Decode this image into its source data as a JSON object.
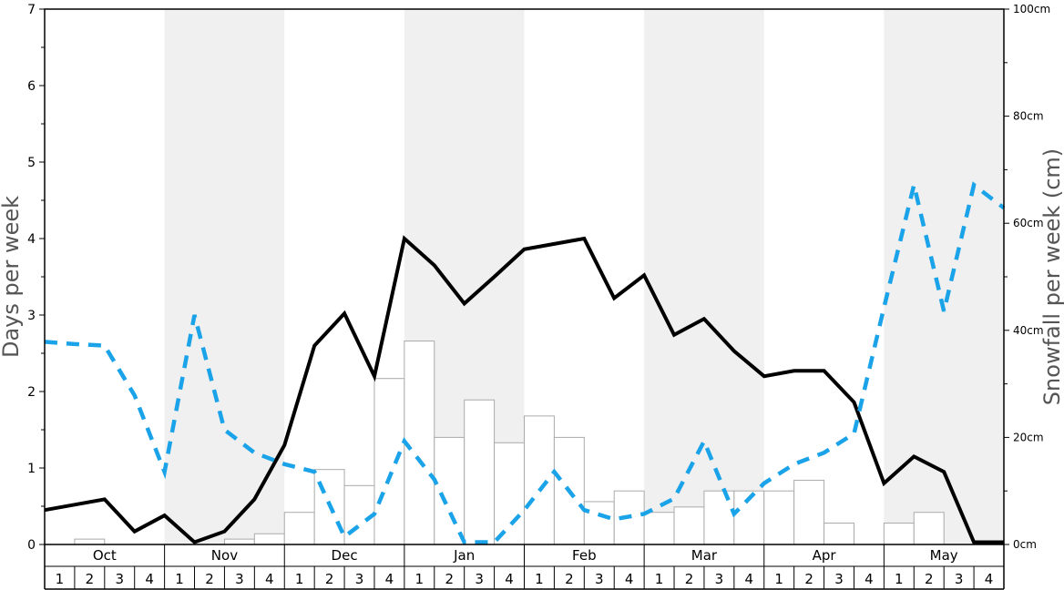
{
  "chart_data": {
    "type": "bar+line",
    "title": "",
    "left_axis": {
      "label": "Days per week",
      "ylim": [
        0,
        7
      ],
      "ticks": [
        "0",
        "1",
        "2",
        "3",
        "4",
        "5",
        "6",
        "7"
      ]
    },
    "right_axis": {
      "label": "Snowfall per week (cm)",
      "ylim": [
        0,
        100
      ],
      "ticks": [
        "0cm",
        "20cm",
        "40cm",
        "60cm",
        "80cm",
        "100cm"
      ]
    },
    "months": [
      "Oct",
      "Nov",
      "Dec",
      "Jan",
      "Feb",
      "Mar",
      "Apr",
      "May"
    ],
    "week_labels": [
      "1",
      "2",
      "3",
      "4"
    ],
    "bars_snowfall_cm": [
      0,
      1,
      0,
      0,
      0,
      0,
      1,
      2,
      6,
      14,
      11,
      31,
      38,
      20,
      27,
      19,
      24,
      20,
      8,
      10,
      6,
      7,
      10,
      10,
      10,
      12,
      4,
      0,
      4,
      6,
      0,
      0
    ],
    "series": [
      {
        "name": "black-solid",
        "axis": "left",
        "color": "#000000",
        "values": [
          0.45,
          0.52,
          0.59,
          0.17,
          0.38,
          0.03,
          0.17,
          0.59,
          1.3,
          2.6,
          3.02,
          2.2,
          4.0,
          3.65,
          3.15,
          3.5,
          3.86,
          3.93,
          4.0,
          3.22,
          3.52,
          2.74,
          2.95,
          2.53,
          2.2,
          2.27,
          2.27,
          1.86,
          0.8,
          1.15,
          0.95,
          0.03,
          0.03
        ]
      },
      {
        "name": "blue-dashed",
        "axis": "left",
        "color": "#1aa3e8",
        "values": [
          2.65,
          2.62,
          2.6,
          1.95,
          0.95,
          3.0,
          1.5,
          1.2,
          1.05,
          0.95,
          0.1,
          0.4,
          1.35,
          0.85,
          0.03,
          0.03,
          0.45,
          0.95,
          0.45,
          0.33,
          0.4,
          0.6,
          1.35,
          0.4,
          0.8,
          1.05,
          1.2,
          1.45,
          3.1,
          4.7,
          3.05,
          4.7,
          4.4
        ]
      }
    ],
    "shaded_months": [
      "Nov",
      "Jan",
      "Mar",
      "May"
    ]
  }
}
